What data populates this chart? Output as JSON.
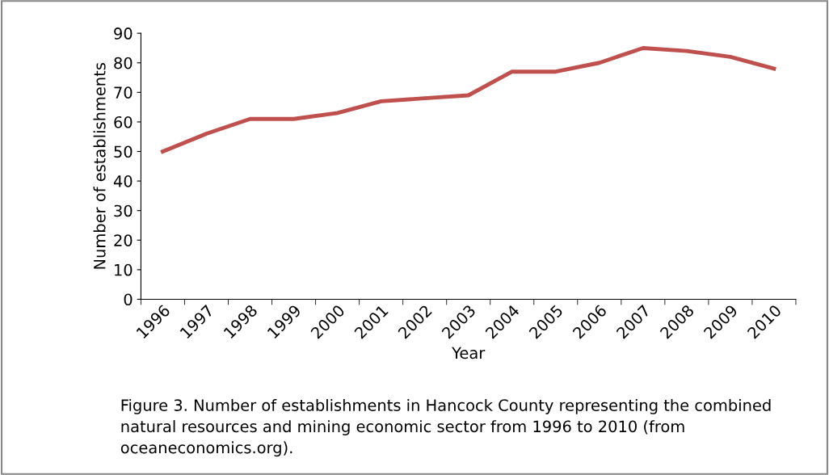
{
  "chart_data": {
    "type": "line",
    "xlabel": "Year",
    "ylabel": "Number of establishments",
    "categories": [
      "1996",
      "1997",
      "1998",
      "1999",
      "2000",
      "2001",
      "2002",
      "2003",
      "2004",
      "2005",
      "2006",
      "2007",
      "2008",
      "2009",
      "2010"
    ],
    "series": [
      {
        "color": "#c0504d",
        "values": [
          50,
          56,
          61,
          61,
          63,
          67,
          68,
          69,
          77,
          77,
          80,
          85,
          84,
          82,
          78
        ]
      }
    ],
    "ylim": [
      0,
      90
    ],
    "yticks": [
      0,
      10,
      20,
      30,
      40,
      50,
      60,
      70,
      80,
      90
    ],
    "grid": false,
    "legend": false,
    "marker": "none",
    "line_style": "solid",
    "annotations": [
      "Figure 3. Number of establishments in Hancock County representing the combined natural resources and mining economic sector from 1996 to 2010 (from oceaneconomics.org)."
    ]
  }
}
